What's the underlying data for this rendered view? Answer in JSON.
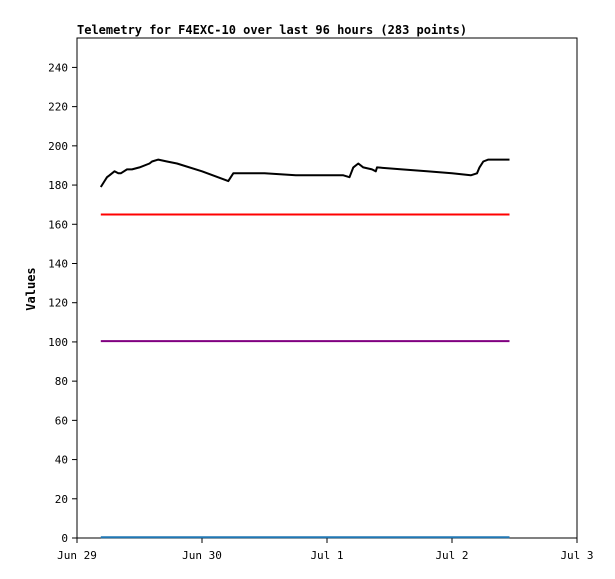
{
  "chart_data": {
    "type": "line",
    "title": "Telemetry for F4EXC-10 over last 96 hours (283 points)",
    "xlabel": "",
    "ylabel": "Values",
    "x_ticks": [
      "Jun 29",
      "Jun 30",
      "Jul 1",
      "Jul 2",
      "Jul 3"
    ],
    "xlim": [
      0,
      4
    ],
    "ylim": [
      0,
      255
    ],
    "y_ticks": [
      0,
      20,
      40,
      60,
      80,
      100,
      120,
      140,
      160,
      180,
      200,
      220,
      240
    ],
    "grid": false,
    "series": [
      {
        "color": "#000000",
        "x": [
          0.19,
          0.22,
          0.24,
          0.26,
          0.28,
          0.3,
          0.33,
          0.35,
          0.4,
          0.44,
          0.5,
          0.58,
          0.6,
          0.65,
          0.72,
          0.8,
          1.0,
          1.21,
          1.24,
          1.25,
          1.5,
          1.75,
          2.0,
          2.13,
          2.18,
          2.21,
          2.25,
          2.29,
          2.36,
          2.39,
          2.4,
          2.6,
          2.8,
          3.0,
          3.15,
          3.2,
          3.22,
          3.25,
          3.29,
          3.34,
          3.46
        ],
        "y": [
          179,
          182,
          184,
          185,
          186,
          187,
          186,
          186,
          188,
          188,
          189,
          191,
          192,
          193,
          192,
          191,
          187,
          182,
          185,
          186,
          186,
          185,
          185,
          185,
          184,
          189,
          191,
          189,
          188,
          187,
          189,
          188,
          187,
          186,
          185,
          186,
          189,
          192,
          193,
          193,
          193
        ]
      },
      {
        "color": "#ff0000",
        "x": [
          0.19,
          3.46
        ],
        "y": [
          165,
          165
        ]
      },
      {
        "color": "#800080",
        "x": [
          0.19,
          3.46
        ],
        "y": [
          100.4,
          100.4
        ]
      },
      {
        "color": "#1f77b4",
        "x": [
          0.19,
          3.46
        ],
        "y": [
          0.4,
          0.4
        ]
      }
    ]
  }
}
